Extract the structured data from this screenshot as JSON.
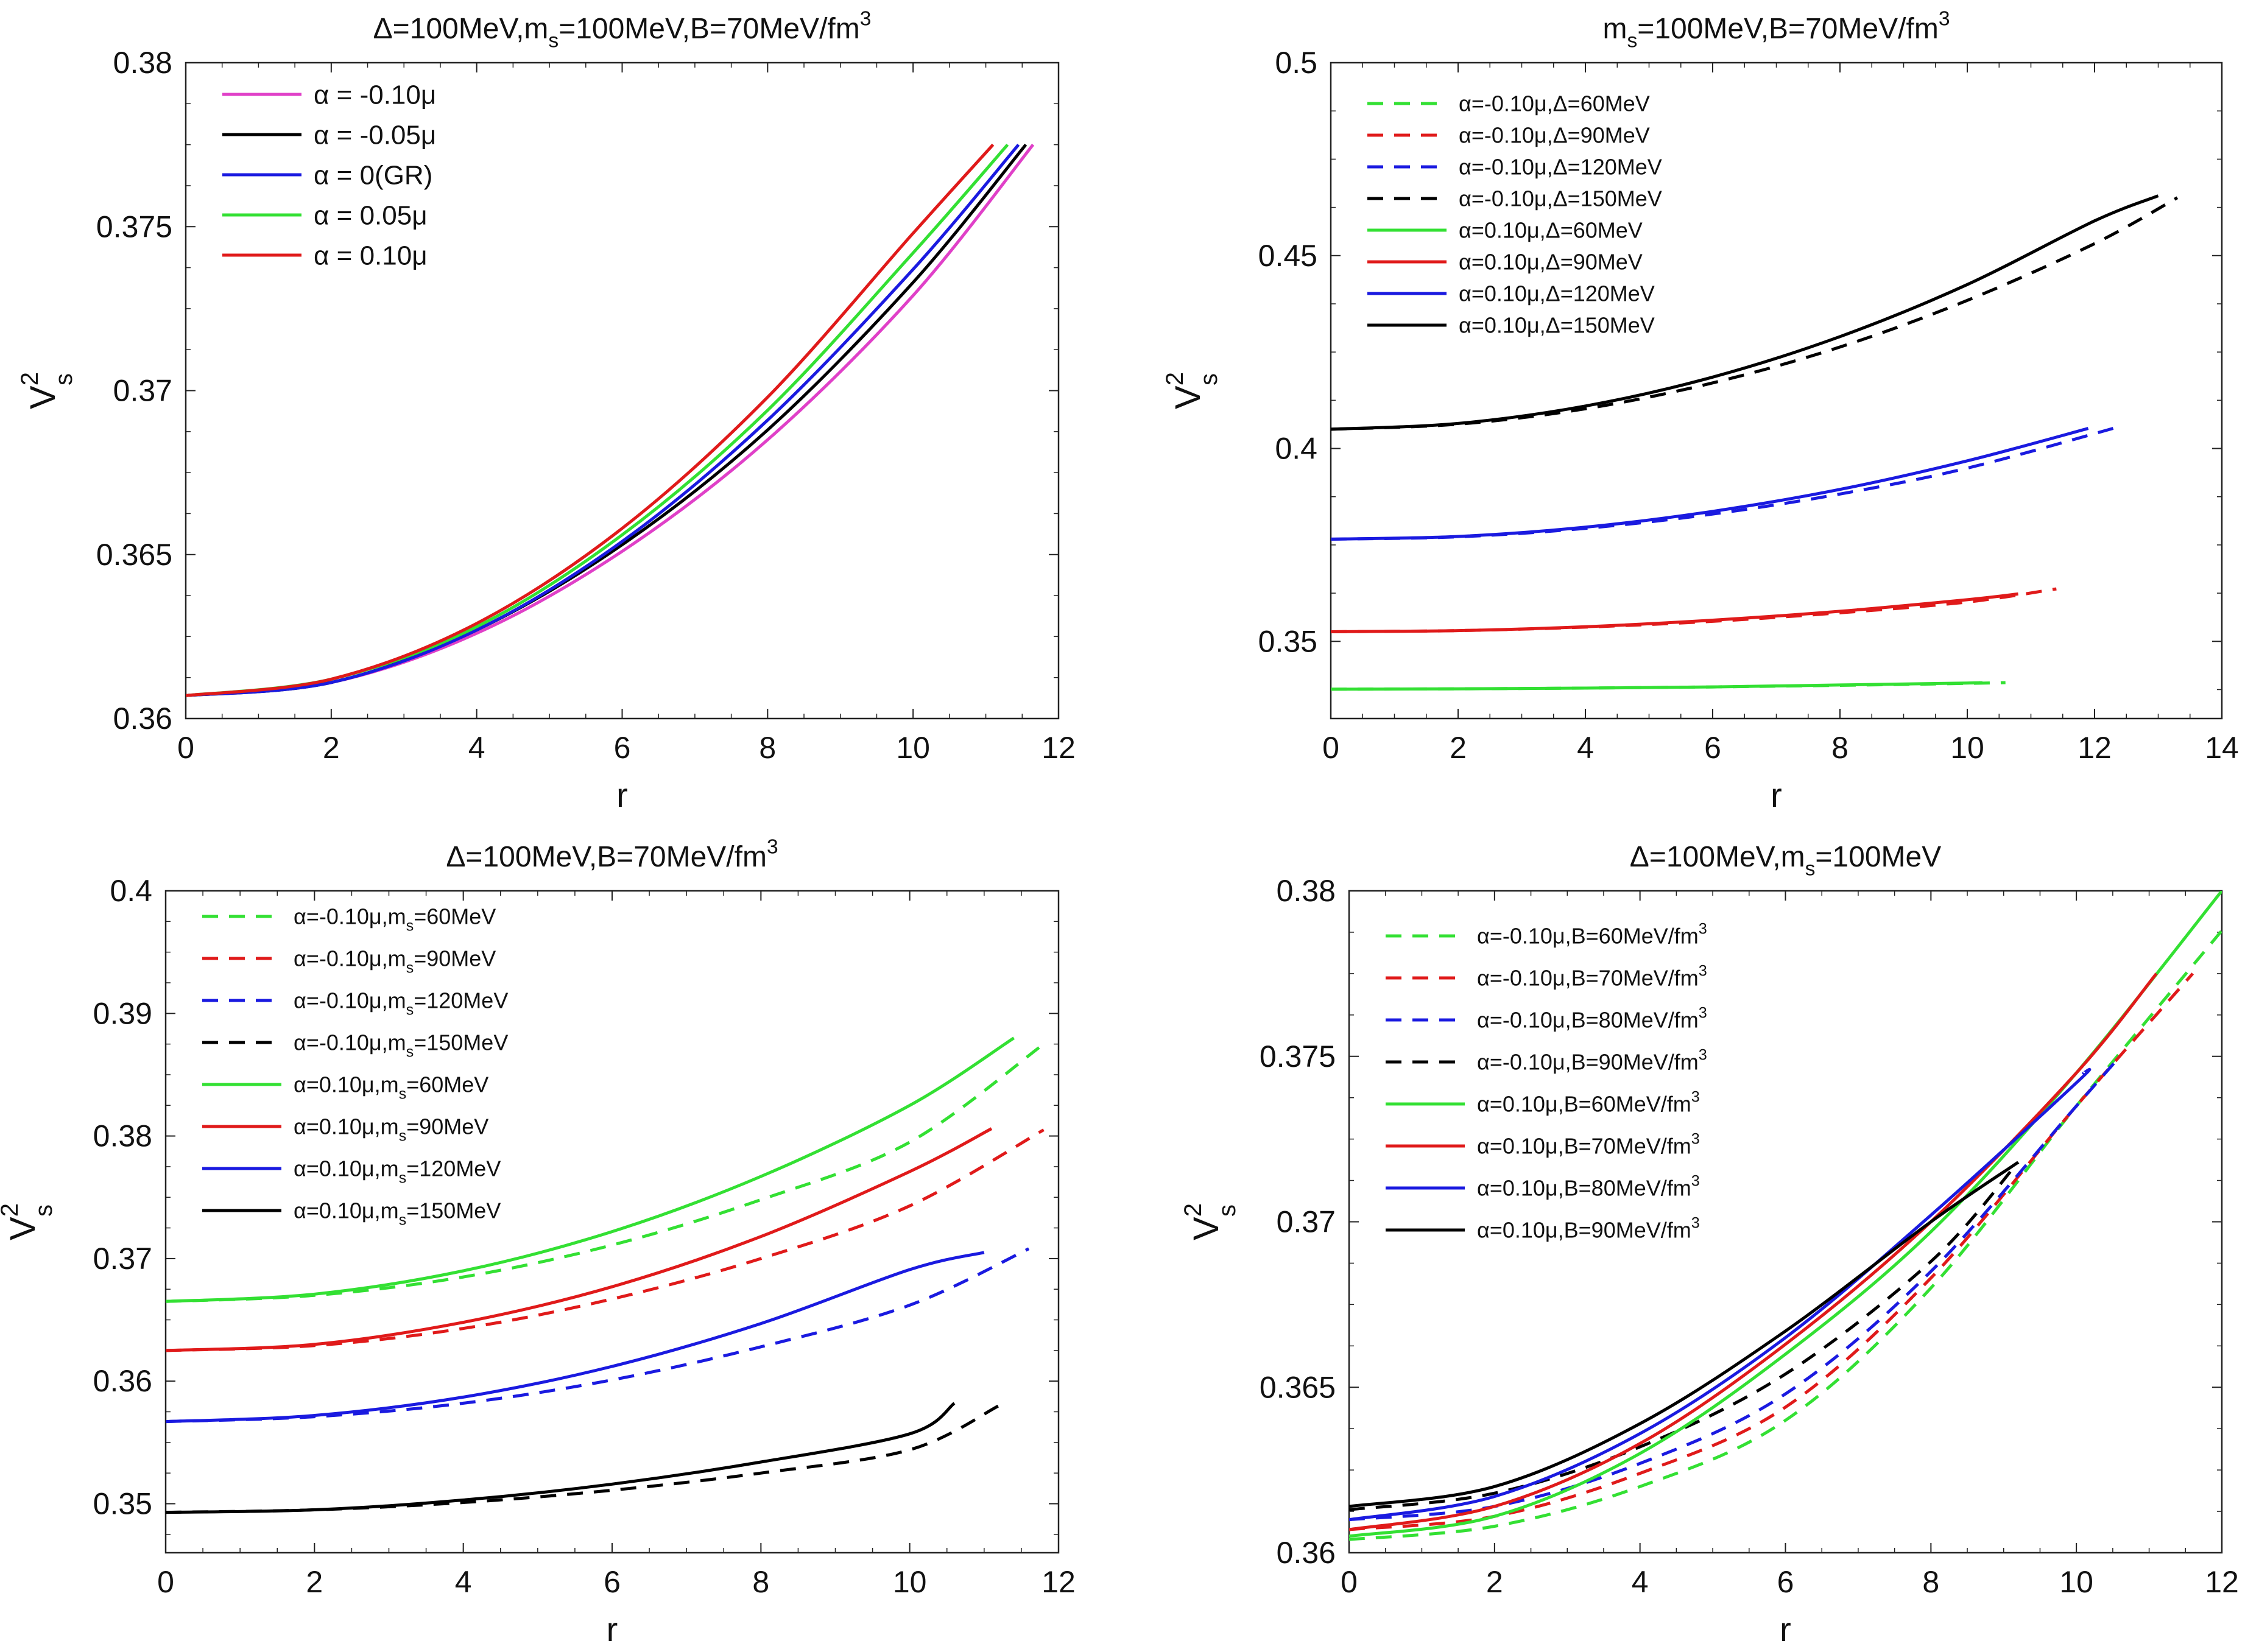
{
  "chart_data": [
    {
      "type": "line",
      "title": "Δ=100MeV,m_s=100MeV,B=70MeV/fm³",
      "title_parts": [
        "Δ=100MeV,m",
        "s",
        "=100MeV,B=70MeV/fm",
        "3"
      ],
      "xlabel": "r",
      "ylabel": "V_s^2",
      "xlim": [
        0,
        12
      ],
      "ylim": [
        0.36,
        0.38
      ],
      "xticks": [
        0,
        2,
        4,
        6,
        8,
        10,
        12
      ],
      "xtick_labels": [
        "0",
        "2",
        "4",
        "6",
        "8",
        "10",
        "12"
      ],
      "yticks": [
        0.36,
        0.365,
        0.37,
        0.375,
        0.38
      ],
      "ytick_labels": [
        "0.36",
        "0.365",
        "0.37",
        "0.375",
        "0.38"
      ],
      "legend": "top-left",
      "grid": false,
      "series": [
        {
          "name": "α = -0.10μ",
          "label_parts": [
            "α = -0.10μ"
          ],
          "color": "#e040c8",
          "dash": false,
          "x": [
            0,
            2,
            4,
            6,
            8,
            10,
            11.65
          ],
          "y": [
            0.3607,
            0.3611,
            0.3626,
            0.3651,
            0.3685,
            0.3729,
            0.3775
          ]
        },
        {
          "name": "α = -0.05μ",
          "label_parts": [
            "α = -0.05μ"
          ],
          "color": "#000000",
          "dash": false,
          "x": [
            0,
            2,
            4,
            6,
            8,
            10,
            11.55
          ],
          "y": [
            0.3607,
            0.3611,
            0.3627,
            0.3653,
            0.3688,
            0.3733,
            0.3775
          ]
        },
        {
          "name": "α = 0(GR)",
          "label_parts": [
            "α = 0(GR)"
          ],
          "color": "#1a1ae0",
          "dash": false,
          "x": [
            0,
            2,
            4,
            6,
            8,
            10,
            11.45
          ],
          "y": [
            0.3607,
            0.3611,
            0.3627,
            0.3654,
            0.3691,
            0.3737,
            0.3775
          ]
        },
        {
          "name": "α = 0.05μ",
          "label_parts": [
            "α = 0.05μ"
          ],
          "color": "#33e033",
          "dash": false,
          "x": [
            0,
            2,
            4,
            6,
            8,
            10,
            11.3
          ],
          "y": [
            0.3607,
            0.3612,
            0.3628,
            0.3656,
            0.3694,
            0.3742,
            0.3775
          ]
        },
        {
          "name": "α = 0.10μ",
          "label_parts": [
            "α = 0.10μ"
          ],
          "color": "#e01a1a",
          "dash": false,
          "x": [
            0,
            2,
            4,
            6,
            8,
            10,
            11.1
          ],
          "y": [
            0.3607,
            0.3612,
            0.3629,
            0.3658,
            0.3698,
            0.3748,
            0.3775
          ]
        }
      ]
    },
    {
      "type": "line",
      "title": "m_s=100MeV,B=70MeV/fm³",
      "title_parts": [
        "m",
        "s",
        "=100MeV,B=70MeV/fm",
        "3"
      ],
      "xlabel": "r",
      "ylabel": "V_s^2",
      "xlim": [
        0,
        14
      ],
      "ylim": [
        0.33,
        0.5
      ],
      "xticks": [
        0,
        2,
        4,
        6,
        8,
        10,
        12,
        14
      ],
      "xtick_labels": [
        "0",
        "2",
        "4",
        "6",
        "8",
        "10",
        "12",
        "14"
      ],
      "yticks": [
        0.35,
        0.4,
        0.45,
        0.5
      ],
      "ytick_labels": [
        "0.35",
        "0.4",
        "0.45",
        "0.5"
      ],
      "legend": "top-left",
      "grid": false,
      "series": [
        {
          "name": "α=-0.10μ,Δ=60MeV",
          "label_parts": [
            "α=-0.10μ,Δ=60MeV"
          ],
          "color": "#33e033",
          "dash": true,
          "x": [
            0,
            2,
            4,
            6,
            8,
            10,
            10.6
          ],
          "y": [
            0.3376,
            0.3377,
            0.3379,
            0.3382,
            0.3386,
            0.3391,
            0.3393
          ]
        },
        {
          "name": "α=-0.10μ,Δ=90MeV",
          "label_parts": [
            "α=-0.10μ,Δ=90MeV"
          ],
          "color": "#e01a1a",
          "dash": true,
          "x": [
            0,
            2,
            4,
            6,
            8,
            10,
            11.4
          ],
          "y": [
            0.3525,
            0.3528,
            0.3537,
            0.3552,
            0.3574,
            0.3602,
            0.3636
          ]
        },
        {
          "name": "α=-0.10μ,Δ=120MeV",
          "label_parts": [
            "α=-0.10μ,Δ=120MeV"
          ],
          "color": "#1a1ae0",
          "dash": true,
          "x": [
            0,
            2,
            4,
            6,
            8,
            10,
            12.4
          ],
          "y": [
            0.3765,
            0.3771,
            0.3793,
            0.383,
            0.3882,
            0.3949,
            0.4057
          ]
        },
        {
          "name": "α=-0.10μ,Δ=150MeV",
          "label_parts": [
            "α=-0.10μ,Δ=150MeV"
          ],
          "color": "#000000",
          "dash": true,
          "x": [
            0,
            2,
            4,
            6,
            8,
            10,
            12,
            13.3
          ],
          "y": [
            0.405,
            0.4063,
            0.4103,
            0.417,
            0.4263,
            0.4384,
            0.4531,
            0.465
          ]
        },
        {
          "name": "α=0.10μ,Δ=60MeV",
          "label_parts": [
            "α=0.10μ,Δ=60MeV"
          ],
          "color": "#33e033",
          "dash": false,
          "x": [
            0,
            2,
            4,
            6,
            8,
            10,
            10.2
          ],
          "y": [
            0.3376,
            0.3377,
            0.3379,
            0.3382,
            0.3387,
            0.3392,
            0.3393
          ]
        },
        {
          "name": "α=0.10μ,Δ=90MeV",
          "label_parts": [
            "α=0.10μ,Δ=90MeV"
          ],
          "color": "#e01a1a",
          "dash": false,
          "x": [
            0,
            2,
            4,
            6,
            8,
            10,
            10.8
          ],
          "y": [
            0.3525,
            0.3528,
            0.3538,
            0.3555,
            0.3578,
            0.3608,
            0.3623
          ]
        },
        {
          "name": "α=0.10μ,Δ=120MeV",
          "label_parts": [
            "α=0.10μ,Δ=120MeV"
          ],
          "color": "#1a1ae0",
          "dash": false,
          "x": [
            0,
            2,
            4,
            6,
            8,
            10,
            11.9
          ],
          "y": [
            0.3765,
            0.3772,
            0.3796,
            0.3837,
            0.3894,
            0.3968,
            0.4052
          ]
        },
        {
          "name": "α=0.10μ,Δ=150MeV",
          "label_parts": [
            "α=0.10μ,Δ=150MeV"
          ],
          "color": "#000000",
          "dash": false,
          "x": [
            0,
            2,
            4,
            6,
            8,
            10,
            12,
            13.0
          ],
          "y": [
            0.405,
            0.4065,
            0.411,
            0.4185,
            0.429,
            0.4425,
            0.459,
            0.4655
          ]
        }
      ]
    },
    {
      "type": "line",
      "title": "Δ=100MeV,B=70MeV/fm³",
      "title_parts": [
        "Δ=100MeV,B=70MeV/fm",
        "3"
      ],
      "xlabel": "r",
      "ylabel": "V_s^2",
      "xlim": [
        0,
        12
      ],
      "ylim": [
        0.346,
        0.4
      ],
      "xticks": [
        0,
        2,
        4,
        6,
        8,
        10,
        12
      ],
      "xtick_labels": [
        "0",
        "2",
        "4",
        "6",
        "8",
        "10",
        "12"
      ],
      "yticks": [
        0.35,
        0.36,
        0.37,
        0.38,
        0.39,
        0.4
      ],
      "ytick_labels": [
        "0.35",
        "0.36",
        "0.37",
        "0.38",
        "0.39",
        "0.4"
      ],
      "legend": "top-left",
      "grid": false,
      "series": [
        {
          "name": "α=-0.10μ,m_s=60MeV",
          "label_parts": [
            "α=-0.10μ,m",
            "s",
            "=60MeV"
          ],
          "color": "#33e033",
          "dash": true,
          "x": [
            0,
            2,
            4,
            6,
            8,
            10,
            11.8
          ],
          "y": [
            0.3665,
            0.367,
            0.3685,
            0.3711,
            0.3748,
            0.3795,
            0.3875
          ]
        },
        {
          "name": "α=-0.10μ,m_s=90MeV",
          "label_parts": [
            "α=-0.10μ,m",
            "s",
            "=90MeV"
          ],
          "color": "#e01a1a",
          "dash": true,
          "x": [
            0,
            2,
            4,
            6,
            8,
            10,
            11.8
          ],
          "y": [
            0.3625,
            0.3629,
            0.3643,
            0.3667,
            0.37,
            0.3743,
            0.3805
          ]
        },
        {
          "name": "α=-0.10μ,m_s=120MeV",
          "label_parts": [
            "α=-0.10μ,m",
            "s",
            "=120MeV"
          ],
          "color": "#1a1ae0",
          "dash": true,
          "x": [
            0,
            2,
            4,
            6,
            8,
            10,
            11.6
          ],
          "y": [
            0.3567,
            0.3571,
            0.3582,
            0.3601,
            0.3628,
            0.3662,
            0.3708
          ]
        },
        {
          "name": "α=-0.10μ,m_s=150MeV",
          "label_parts": [
            "α=-0.10μ,m",
            "s",
            "=150MeV"
          ],
          "color": "#000000",
          "dash": true,
          "x": [
            0,
            2,
            4,
            6,
            8,
            10,
            11.2
          ],
          "y": [
            0.3493,
            0.3495,
            0.3501,
            0.3511,
            0.3525,
            0.3544,
            0.358
          ]
        },
        {
          "name": "α=0.10μ,m_s=60MeV",
          "label_parts": [
            "α=0.10μ,m",
            "s",
            "=60MeV"
          ],
          "color": "#33e033",
          "dash": false,
          "x": [
            0,
            2,
            4,
            6,
            8,
            10,
            11.4
          ],
          "y": [
            0.3665,
            0.3671,
            0.369,
            0.3722,
            0.3767,
            0.3825,
            0.388
          ]
        },
        {
          "name": "α=0.10μ,m_s=90MeV",
          "label_parts": [
            "α=0.10μ,m",
            "s",
            "=90MeV"
          ],
          "color": "#e01a1a",
          "dash": false,
          "x": [
            0,
            2,
            4,
            6,
            8,
            10,
            11.1
          ],
          "y": [
            0.3625,
            0.363,
            0.3648,
            0.3677,
            0.3718,
            0.3771,
            0.3806
          ]
        },
        {
          "name": "α=0.10μ,m_s=120MeV",
          "label_parts": [
            "α=0.10μ,m",
            "s",
            "=120MeV"
          ],
          "color": "#1a1ae0",
          "dash": false,
          "x": [
            0,
            2,
            4,
            6,
            8,
            10,
            11.0
          ],
          "y": [
            0.3567,
            0.3572,
            0.3587,
            0.3612,
            0.3647,
            0.3691,
            0.3705
          ]
        },
        {
          "name": "α=0.10μ,m_s=150MeV",
          "label_parts": [
            "α=0.10μ,m",
            "s",
            "=150MeV"
          ],
          "color": "#000000",
          "dash": false,
          "x": [
            0,
            2,
            4,
            6,
            8,
            10,
            10.6
          ],
          "y": [
            0.3493,
            0.3495,
            0.3503,
            0.3516,
            0.3534,
            0.3557,
            0.3582
          ]
        }
      ]
    },
    {
      "type": "line",
      "title": "Δ=100MeV,m_s=100MeV",
      "title_parts": [
        "Δ=100MeV,m",
        "s",
        "=100MeV"
      ],
      "xlabel": "r",
      "ylabel": "V_s^2",
      "xlim": [
        0,
        12
      ],
      "ylim": [
        0.36,
        0.38
      ],
      "xticks": [
        0,
        2,
        4,
        6,
        8,
        10,
        12
      ],
      "xtick_labels": [
        "0",
        "2",
        "4",
        "6",
        "8",
        "10",
        "12"
      ],
      "yticks": [
        0.36,
        0.365,
        0.37,
        0.375,
        0.38
      ],
      "ytick_labels": [
        "0.36",
        "0.365",
        "0.37",
        "0.375",
        "0.38"
      ],
      "legend": "top-left",
      "grid": false,
      "series": [
        {
          "name": "α=-0.10μ,B=60MeV/fm³",
          "label_parts": [
            "α=-0.10μ,B=60MeV/fm",
            "3"
          ],
          "color": "#33e033",
          "dash": true,
          "x": [
            0,
            2,
            4,
            6,
            8,
            10,
            12
          ],
          "y": [
            0.3604,
            0.3608,
            0.362,
            0.364,
            0.368,
            0.3735,
            0.3788
          ]
        },
        {
          "name": "α=-0.10μ,B=70MeV/fm³",
          "label_parts": [
            "α=-0.10μ,B=70MeV/fm",
            "3"
          ],
          "color": "#e01a1a",
          "dash": true,
          "x": [
            0,
            2,
            4,
            6,
            8,
            10,
            11.6
          ],
          "y": [
            0.3607,
            0.3611,
            0.3624,
            0.3644,
            0.3683,
            0.3735,
            0.3775
          ]
        },
        {
          "name": "α=-0.10μ,B=80MeV/fm³",
          "label_parts": [
            "α=-0.10μ,B=80MeV/fm",
            "3"
          ],
          "color": "#1a1ae0",
          "dash": true,
          "x": [
            0,
            2,
            4,
            6,
            8,
            10,
            10.6
          ],
          "y": [
            0.361,
            0.3614,
            0.3627,
            0.3648,
            0.3685,
            0.3735,
            0.375
          ]
        },
        {
          "name": "α=-0.10μ,B=90MeV/fm³",
          "label_parts": [
            "α=-0.10μ,B=90MeV/fm",
            "3"
          ],
          "color": "#000000",
          "dash": true,
          "x": [
            0,
            2,
            4,
            6,
            8,
            9.2
          ],
          "y": [
            0.3613,
            0.3618,
            0.3632,
            0.3654,
            0.3688,
            0.3718
          ]
        },
        {
          "name": "α=0.10μ,B=60MeV/fm³",
          "label_parts": [
            "α=0.10μ,B=60MeV/fm",
            "3"
          ],
          "color": "#33e033",
          "dash": false,
          "x": [
            0,
            2,
            4,
            6,
            8,
            10,
            12
          ],
          "y": [
            0.3605,
            0.3611,
            0.363,
            0.366,
            0.3697,
            0.3745,
            0.38
          ]
        },
        {
          "name": "α=0.10μ,B=70MeV/fm³",
          "label_parts": [
            "α=0.10μ,B=70MeV/fm",
            "3"
          ],
          "color": "#e01a1a",
          "dash": false,
          "x": [
            0,
            2,
            4,
            6,
            8,
            10,
            11.1
          ],
          "y": [
            0.3607,
            0.3614,
            0.3633,
            0.3663,
            0.37,
            0.3745,
            0.3775
          ]
        },
        {
          "name": "α=0.10μ,B=80MeV/fm³",
          "label_parts": [
            "α=0.10μ,B=80MeV/fm",
            "3"
          ],
          "color": "#1a1ae0",
          "dash": false,
          "x": [
            0,
            2,
            4,
            6,
            8,
            10,
            10.1
          ],
          "y": [
            0.361,
            0.3617,
            0.3636,
            0.3665,
            0.3702,
            0.3742,
            0.3745
          ]
        },
        {
          "name": "α=0.10μ,B=90MeV/fm³",
          "label_parts": [
            "α=0.10μ,B=90MeV/fm",
            "3"
          ],
          "color": "#000000",
          "dash": false,
          "x": [
            0,
            2,
            4,
            6,
            8,
            9.2
          ],
          "y": [
            0.3614,
            0.362,
            0.3639,
            0.3667,
            0.37,
            0.3718
          ]
        }
      ]
    }
  ]
}
